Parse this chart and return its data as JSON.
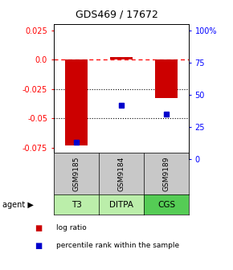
{
  "title": "GDS469 / 17672",
  "categories": [
    "T3",
    "DITPA",
    "CGS"
  ],
  "gsm_labels": [
    "GSM9185",
    "GSM9184",
    "GSM9189"
  ],
  "log_ratios": [
    -0.073,
    0.002,
    -0.033
  ],
  "percentile_ranks_pct": [
    0.13,
    0.42,
    0.35
  ],
  "ylim_left": [
    -0.085,
    0.03
  ],
  "ylim_right": [
    0.0,
    1.05
  ],
  "yticks_left": [
    0.025,
    0.0,
    -0.025,
    -0.05,
    -0.075
  ],
  "yticks_right": [
    1.0,
    0.75,
    0.5,
    0.25,
    0.0
  ],
  "ytick_right_labels": [
    "100%",
    "75",
    "50",
    "25",
    "0"
  ],
  "bar_color": "#cc0000",
  "dot_color": "#0000cc",
  "cell_gray": "#c8c8c8",
  "cell_green_light": "#bbeeaa",
  "cell_green_medium": "#55cc55",
  "legend_log": "log ratio",
  "legend_pct": "percentile rank within the sample",
  "bar_width": 0.5
}
